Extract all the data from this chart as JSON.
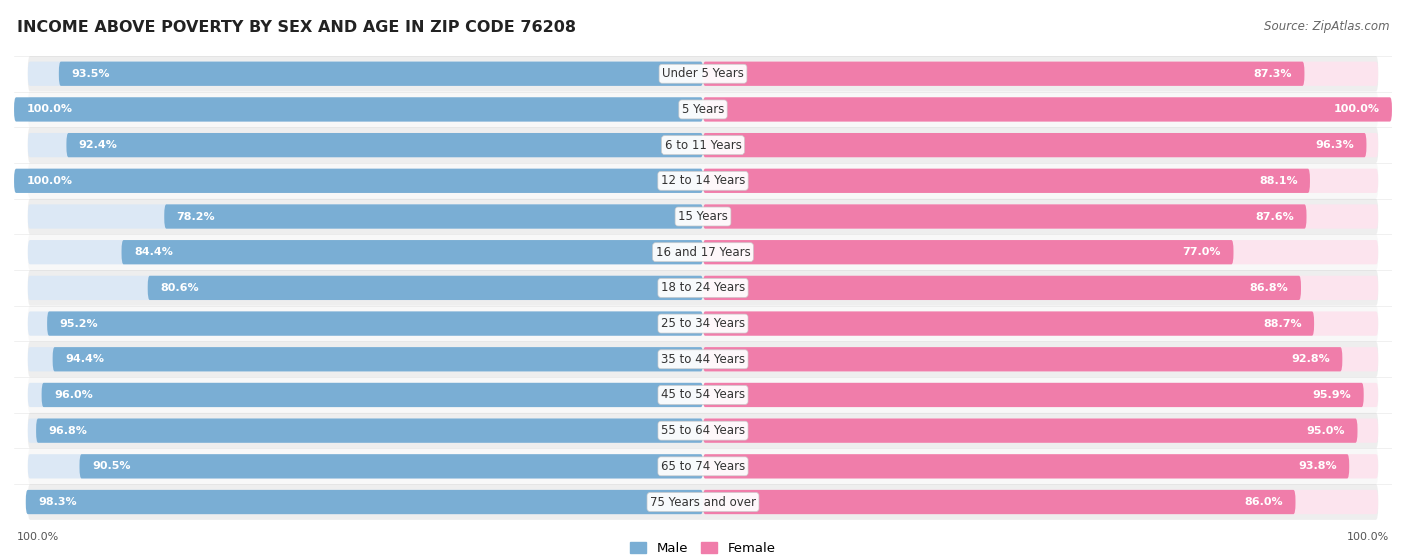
{
  "title": "INCOME ABOVE POVERTY BY SEX AND AGE IN ZIP CODE 76208",
  "source": "Source: ZipAtlas.com",
  "categories": [
    "Under 5 Years",
    "5 Years",
    "6 to 11 Years",
    "12 to 14 Years",
    "15 Years",
    "16 and 17 Years",
    "18 to 24 Years",
    "25 to 34 Years",
    "35 to 44 Years",
    "45 to 54 Years",
    "55 to 64 Years",
    "65 to 74 Years",
    "75 Years and over"
  ],
  "male_values": [
    93.5,
    100.0,
    92.4,
    100.0,
    78.2,
    84.4,
    80.6,
    95.2,
    94.4,
    96.0,
    96.8,
    90.5,
    98.3
  ],
  "female_values": [
    87.3,
    100.0,
    96.3,
    88.1,
    87.6,
    77.0,
    86.8,
    88.7,
    92.8,
    95.9,
    95.0,
    93.8,
    86.0
  ],
  "male_color": "#7aaed4",
  "female_color": "#f07daa",
  "male_bg_color": "#dce8f5",
  "female_bg_color": "#fce4ee",
  "male_label": "Male",
  "female_label": "Female",
  "row_bg_odd": "#eeeeee",
  "row_bg_even": "#f8f8f8",
  "title_fontsize": 11.5,
  "source_fontsize": 8.5,
  "bar_label_fontsize": 8.0,
  "category_fontsize": 8.5,
  "footer_label": "100.0%"
}
